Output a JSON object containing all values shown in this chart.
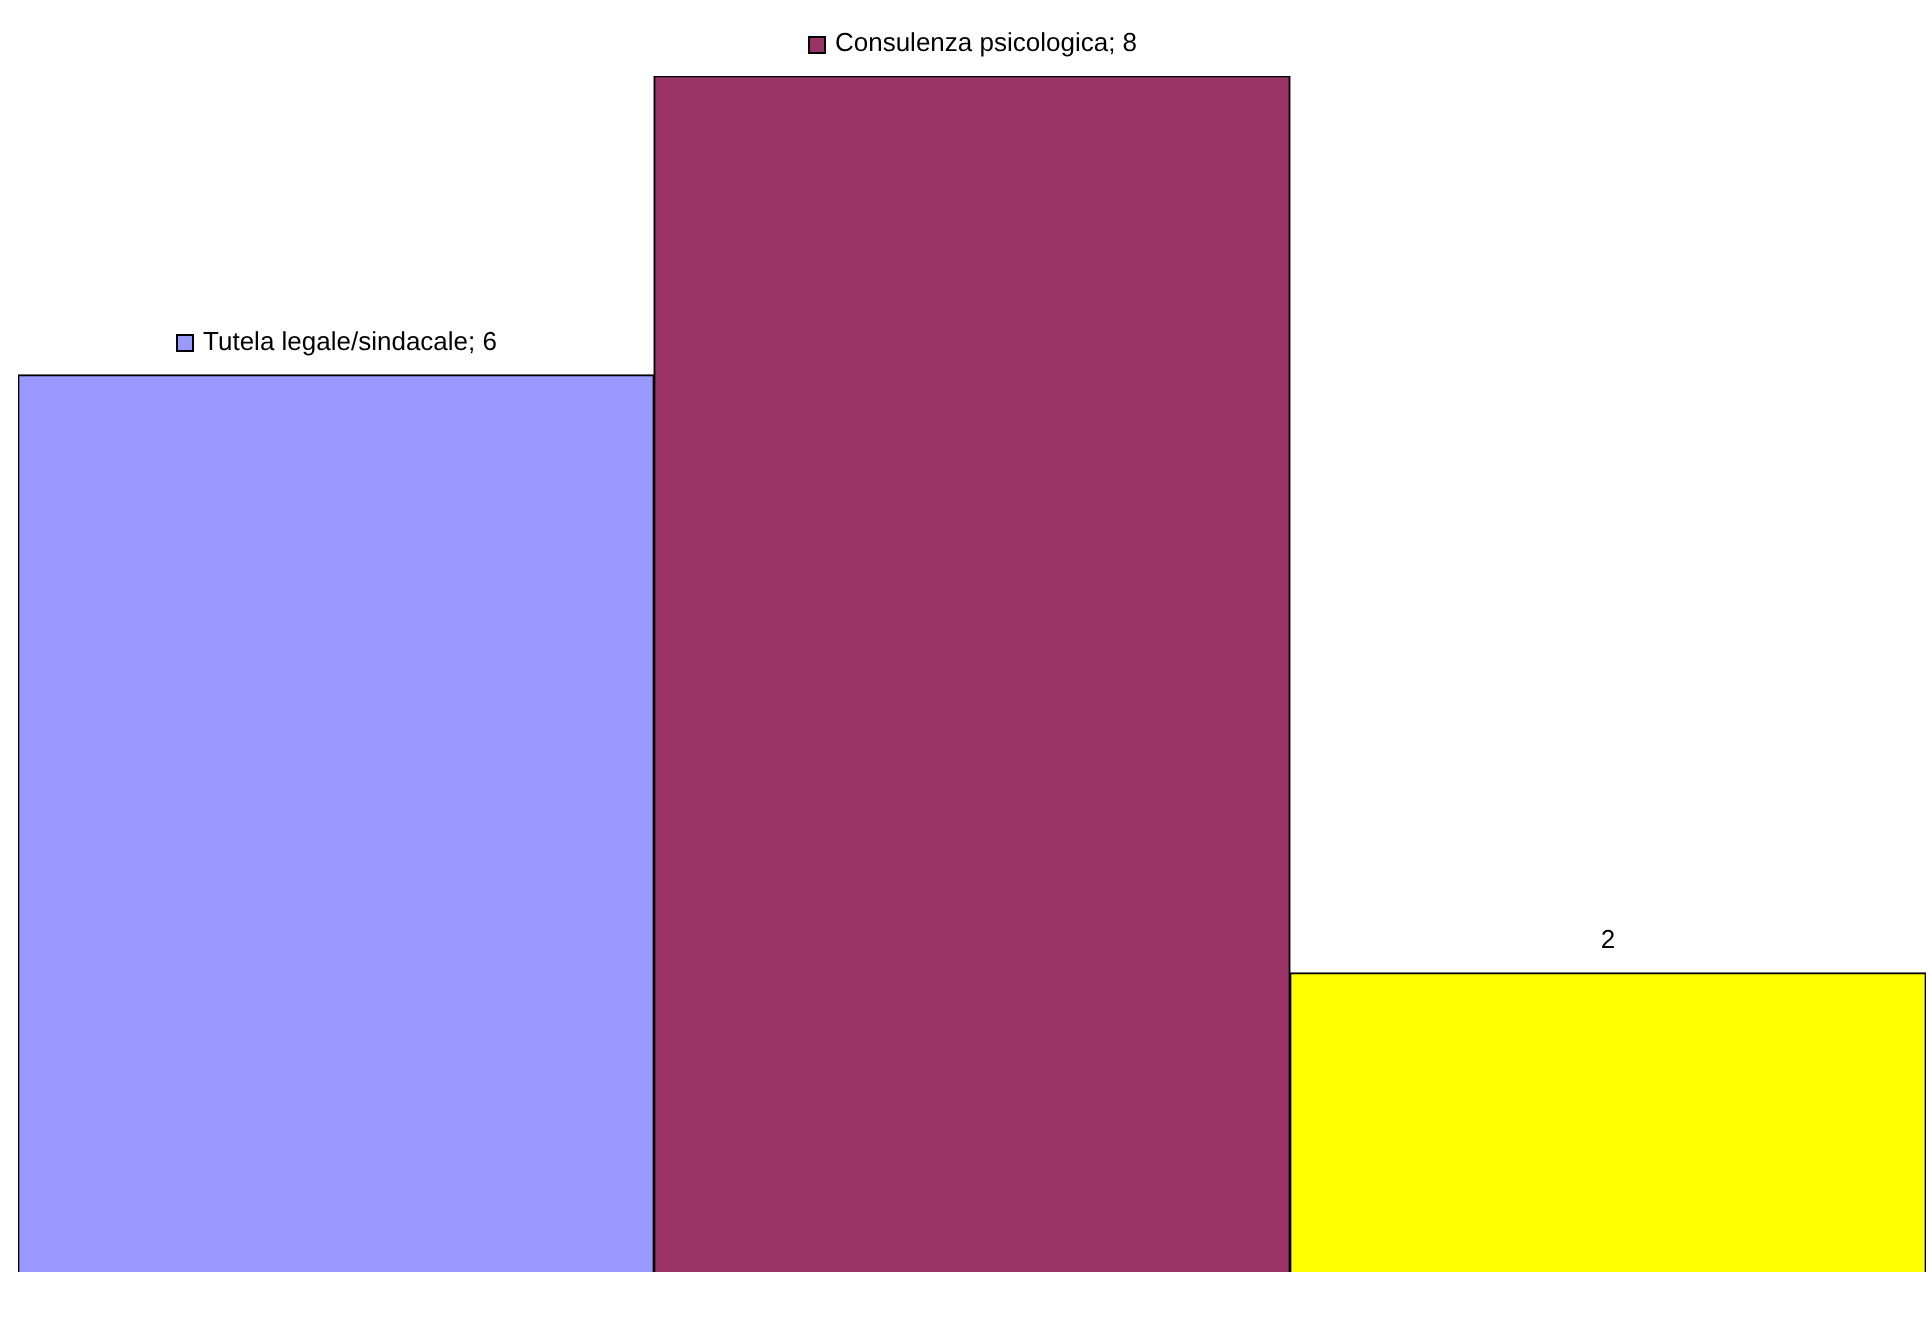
{
  "chart_data": {
    "type": "bar",
    "categories": [
      null
    ],
    "series": [
      {
        "name": "Tutela legale/sindacale",
        "color": "#9999ff",
        "values": [
          6
        ],
        "value_labels": [
          "; 6"
        ]
      },
      {
        "name": "Consulenza psicologica",
        "color": "#993366",
        "values": [
          8
        ],
        "value_labels": [
          "; 8"
        ]
      },
      {
        "color": "#ffff00",
        "values": [
          2
        ],
        "value_labels": [
          "2"
        ]
      }
    ],
    "legend": "top"
  }
}
